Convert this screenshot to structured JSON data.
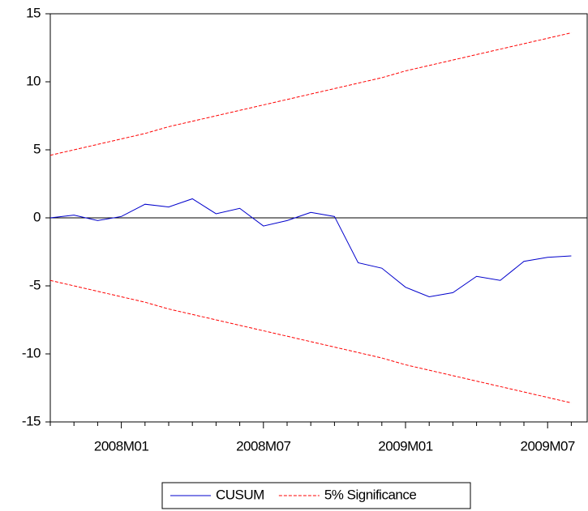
{
  "chart_data": {
    "type": "line",
    "categories": [
      null,
      null,
      null,
      "2008M01",
      null,
      null,
      null,
      null,
      null,
      "2008M07",
      null,
      null,
      null,
      null,
      null,
      "2009M01",
      null,
      null,
      null,
      null,
      null,
      "2009M07",
      null
    ],
    "series": [
      {
        "name": "CUSUM",
        "color": "#0000cc",
        "values": [
          0.0,
          0.2,
          -0.2,
          0.1,
          1.0,
          0.8,
          1.4,
          0.3,
          0.7,
          -0.6,
          -0.2,
          0.4,
          0.1,
          -3.3,
          -3.7,
          -5.1,
          -5.8,
          -5.5,
          -4.3,
          -4.6,
          -3.2,
          -2.9,
          -2.8
        ]
      },
      {
        "name": "5% Significance",
        "color": "#ff0000",
        "dashed": true,
        "values": [
          4.6,
          5.0,
          5.4,
          5.8,
          6.2,
          6.7,
          7.1,
          7.5,
          7.9,
          8.3,
          8.7,
          9.1,
          9.5,
          9.9,
          10.3,
          10.8,
          11.2,
          11.6,
          12.0,
          12.4,
          12.8,
          13.2,
          13.6
        ],
        "lower": [
          -4.6,
          -5.0,
          -5.4,
          -5.8,
          -6.2,
          -6.7,
          -7.1,
          -7.5,
          -7.9,
          -8.3,
          -8.7,
          -9.1,
          -9.5,
          -9.9,
          -10.3,
          -10.8,
          -11.2,
          -11.6,
          -12.0,
          -12.4,
          -12.8,
          -13.2,
          -13.6
        ]
      }
    ],
    "ylim": [
      -15,
      15
    ],
    "yticks": [
      -15,
      -10,
      -5,
      0,
      5,
      10,
      15
    ],
    "zero_line": true
  }
}
